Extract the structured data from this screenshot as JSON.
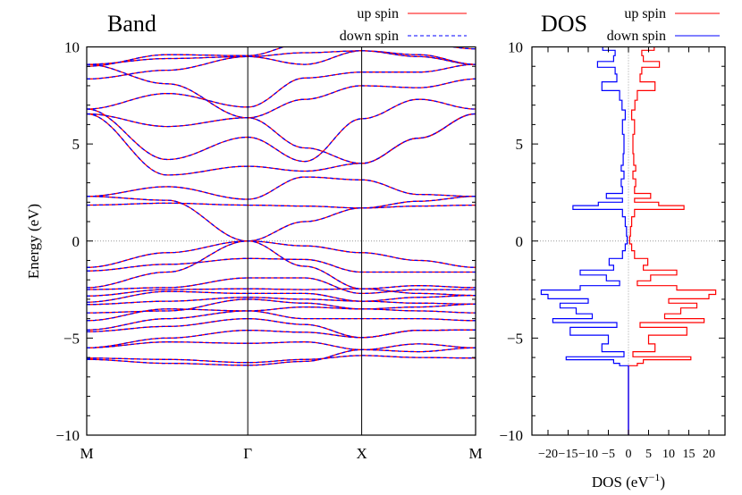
{
  "chart_data": [
    {
      "type": "line",
      "title": "Band",
      "ylabel": "Energy (eV)",
      "ylim": [
        -10,
        10
      ],
      "yticks": [
        -10,
        -5,
        0,
        5,
        10
      ],
      "grid": false,
      "fermi_line": 0,
      "legend_placement": "top-right",
      "k_path_labels": [
        "M",
        "Γ",
        "X",
        "M"
      ],
      "k_path_positions": [
        0,
        1.414,
        2.414,
        3.414
      ],
      "k_samples": [
        0,
        0.707,
        1.414,
        1.914,
        2.414,
        2.914,
        3.414
      ],
      "series": [
        {
          "name": "up spin",
          "color": "#ff0000",
          "style": "solid"
        },
        {
          "name": "down spin",
          "color": "#0000ff",
          "style": "dashed"
        }
      ],
      "bands": [
        [
          1.85,
          1.95,
          1.85,
          1.8,
          1.7,
          1.8,
          1.85
        ],
        [
          2.3,
          2.1,
          0,
          1.0,
          1.7,
          2.05,
          2.3
        ],
        [
          2.3,
          2.8,
          2.15,
          3.3,
          3.15,
          2.4,
          2.3
        ],
        [
          6.55,
          3.4,
          3.85,
          3.6,
          4.0,
          5.3,
          6.55
        ],
        [
          6.8,
          4.2,
          5.35,
          4.1,
          6.3,
          7.3,
          6.8
        ],
        [
          6.55,
          5.9,
          6.35,
          7.3,
          8.0,
          7.9,
          8.35
        ],
        [
          6.8,
          7.6,
          6.9,
          8.4,
          8.7,
          8.7,
          9.1
        ],
        [
          8.35,
          8.8,
          9.5,
          9.1,
          9.8,
          9.5,
          9.1
        ],
        [
          9.1,
          9.4,
          9.5,
          9.7,
          9.8,
          9.6,
          9.1
        ],
        [
          9.1,
          8.1,
          6.35,
          4.8,
          4.0,
          5.3,
          6.55
        ],
        [
          9.0,
          9.6,
          9.55,
          10.2,
          10.4,
          10.2,
          9.9
        ],
        [
          -1.36,
          -0.6,
          0,
          -0.25,
          -0.6,
          -1.0,
          -1.36
        ],
        [
          -1.54,
          -1.2,
          -0.9,
          -0.95,
          -1.6,
          -1.6,
          -1.6
        ],
        [
          -2.4,
          -1.6,
          0,
          -1.3,
          -2.46,
          -2.3,
          -2.4
        ],
        [
          -2.5,
          -2.4,
          -1.9,
          -1.9,
          -2.7,
          -2.5,
          -2.5
        ],
        [
          -2.83,
          -2.5,
          -2.46,
          -2.5,
          -2.46,
          -2.7,
          -2.8
        ],
        [
          -3.15,
          -2.6,
          -2.7,
          -2.7,
          -3.1,
          -2.9,
          -2.8
        ],
        [
          -3.27,
          -3.1,
          -2.9,
          -3.0,
          -3.1,
          -3.2,
          -3.25
        ],
        [
          -3.7,
          -3.6,
          -3.0,
          -3.2,
          -3.5,
          -3.4,
          -3.25
        ],
        [
          -4.1,
          -3.5,
          -3.6,
          -3.4,
          -3.5,
          -3.6,
          -3.7
        ],
        [
          -4.58,
          -4.0,
          -3.6,
          -4.0,
          -4.0,
          -4.0,
          -4.1
        ],
        [
          -4.67,
          -4.4,
          -4.0,
          -4.3,
          -4.97,
          -4.6,
          -4.58
        ],
        [
          -5.5,
          -5.0,
          -4.6,
          -4.7,
          -4.97,
          -4.6,
          -4.58
        ],
        [
          -5.5,
          -5.2,
          -5.27,
          -5.2,
          -5.6,
          -5.3,
          -5.5
        ],
        [
          -6.03,
          -6.1,
          -6.26,
          -6.1,
          -5.9,
          -6.0,
          -6.03
        ],
        [
          -6.1,
          -6.3,
          -6.4,
          -6.2,
          -5.6,
          -5.7,
          -5.5
        ]
      ]
    },
    {
      "type": "line",
      "title": "DOS",
      "xlabel": "DOS (eV",
      "xlabel_sup": "−1",
      "xlabel_close": ")",
      "xlim": [
        -24,
        24
      ],
      "ylim": [
        -10,
        10
      ],
      "xticks": [
        -20,
        -15,
        -10,
        -5,
        0,
        5,
        10,
        15,
        20
      ],
      "xtick_labels": [
        "−20",
        "−15",
        "−10",
        "−5",
        "0",
        "5",
        "10",
        "15",
        "20"
      ],
      "yticks": [
        -10,
        -5,
        0,
        5,
        10
      ],
      "grid": false,
      "fermi_line": 0,
      "legend_placement": "top-right",
      "energy": [
        -10,
        -6.45,
        -6.4,
        -6.2,
        -6.03,
        -5.9,
        -5.5,
        -5.1,
        -4.6,
        -4.3,
        -4.1,
        -3.9,
        -3.6,
        -3.3,
        -3.1,
        -2.85,
        -2.65,
        -2.4,
        -2.2,
        -1.9,
        -1.6,
        -1.4,
        -1.1,
        -0.7,
        -0.3,
        0,
        0.5,
        1.0,
        1.5,
        1.75,
        1.9,
        2.1,
        2.3,
        2.6,
        3.0,
        3.4,
        3.8,
        4.0,
        5.0,
        6.0,
        6.5,
        7.0,
        7.5,
        8.0,
        8.4,
        8.8,
        9.1,
        9.4,
        9.7,
        9.95
      ],
      "series": [
        {
          "name": "up spin",
          "color": "#ff0000",
          "values": [
            0,
            0,
            2.2,
            3.7,
            15.5,
            1.1,
            6.6,
            5,
            14.5,
            2.9,
            18.8,
            9,
            13,
            17,
            10,
            20,
            21.7,
            12,
            2.2,
            5.5,
            12,
            3.7,
            4.8,
            1.5,
            0.8,
            0.3,
            0.5,
            0.8,
            1.5,
            13.8,
            7.5,
            1.5,
            5.5,
            1.5,
            1.8,
            1.1,
            1.8,
            1.3,
            1.1,
            1.5,
            0.8,
            1.6,
            2.2,
            6.6,
            2.9,
            3.3,
            7.7,
            3.7,
            3.3,
            6.4
          ]
        },
        {
          "name": "down spin",
          "color": "#0000ff",
          "values": [
            0,
            0,
            -2.2,
            -3.7,
            -15.5,
            -1.1,
            -6.6,
            -5,
            -14.5,
            -2.9,
            -18.8,
            -9,
            -13,
            -17,
            -10,
            -20,
            -21.7,
            -12,
            -2.2,
            -5.5,
            -12,
            -3.7,
            -4.8,
            -1.5,
            -0.8,
            -0.3,
            -0.5,
            -0.8,
            -1.5,
            -13.8,
            -7.5,
            -1.5,
            -5.5,
            -1.5,
            -1.8,
            -1.1,
            -1.8,
            -1.3,
            -1.1,
            -1.5,
            -0.8,
            -1.6,
            -2.2,
            -6.6,
            -2.9,
            -3.3,
            -7.7,
            -3.7,
            -3.3,
            -6.4
          ]
        }
      ]
    }
  ]
}
